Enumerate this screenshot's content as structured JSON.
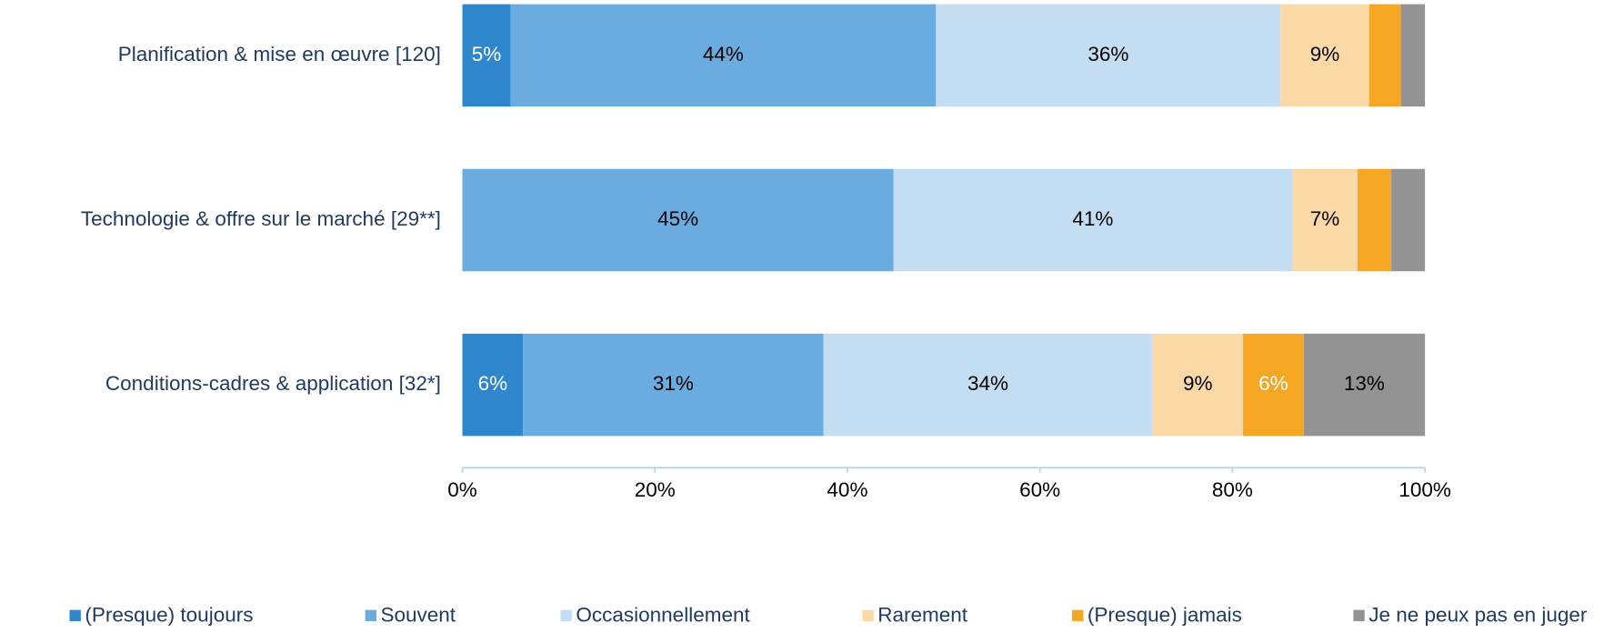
{
  "chart_data": {
    "type": "stacked-barh",
    "categories": [
      "Planification & mise en œuvre [120]",
      "Technologie & offre sur le marché [29**]",
      "Conditions-cadres & application [32*]"
    ],
    "series": [
      {
        "name": "(Presque) toujours",
        "color": "#2e86cd",
        "label_color": "#ffffff",
        "values": [
          5,
          0,
          6.3
        ],
        "value_labels": [
          "5%",
          null,
          "6%"
        ]
      },
      {
        "name": "Souvent",
        "color": "#6aacdf",
        "label_color": "#000000",
        "values": [
          44.2,
          44.8,
          31.2
        ],
        "value_labels": [
          "44%",
          "45%",
          "31%"
        ]
      },
      {
        "name": "Occasionnellement",
        "color": "#c3ddf2",
        "label_color": "#000000",
        "values": [
          35.8,
          41.4,
          34.2
        ],
        "value_labels": [
          "36%",
          "41%",
          "34%"
        ]
      },
      {
        "name": "Rarement",
        "color": "#fbd9a6",
        "label_color": "#000000",
        "values": [
          9.2,
          6.8,
          9.4
        ],
        "value_labels": [
          "9%",
          "7%",
          "9%"
        ]
      },
      {
        "name": "(Presque) jamais",
        "color": "#f5a623",
        "label_color": "#ffffff",
        "values": [
          3.3,
          3.5,
          6.3
        ],
        "value_labels": [
          null,
          null,
          "6%"
        ]
      },
      {
        "name": "Je ne peux pas en juger",
        "color": "#939393",
        "label_color": "#000000",
        "values": [
          2.5,
          3.5,
          12.6
        ],
        "value_labels": [
          null,
          null,
          "13%"
        ]
      }
    ],
    "xlim": [
      0,
      100
    ],
    "xticks": [
      {
        "value": 0,
        "label": "0%"
      },
      {
        "value": 20,
        "label": "20%"
      },
      {
        "value": 40,
        "label": "40%"
      },
      {
        "value": 60,
        "label": "60%"
      },
      {
        "value": 80,
        "label": "80%"
      },
      {
        "value": 100,
        "label": "100%"
      }
    ],
    "legend": "bottom"
  }
}
